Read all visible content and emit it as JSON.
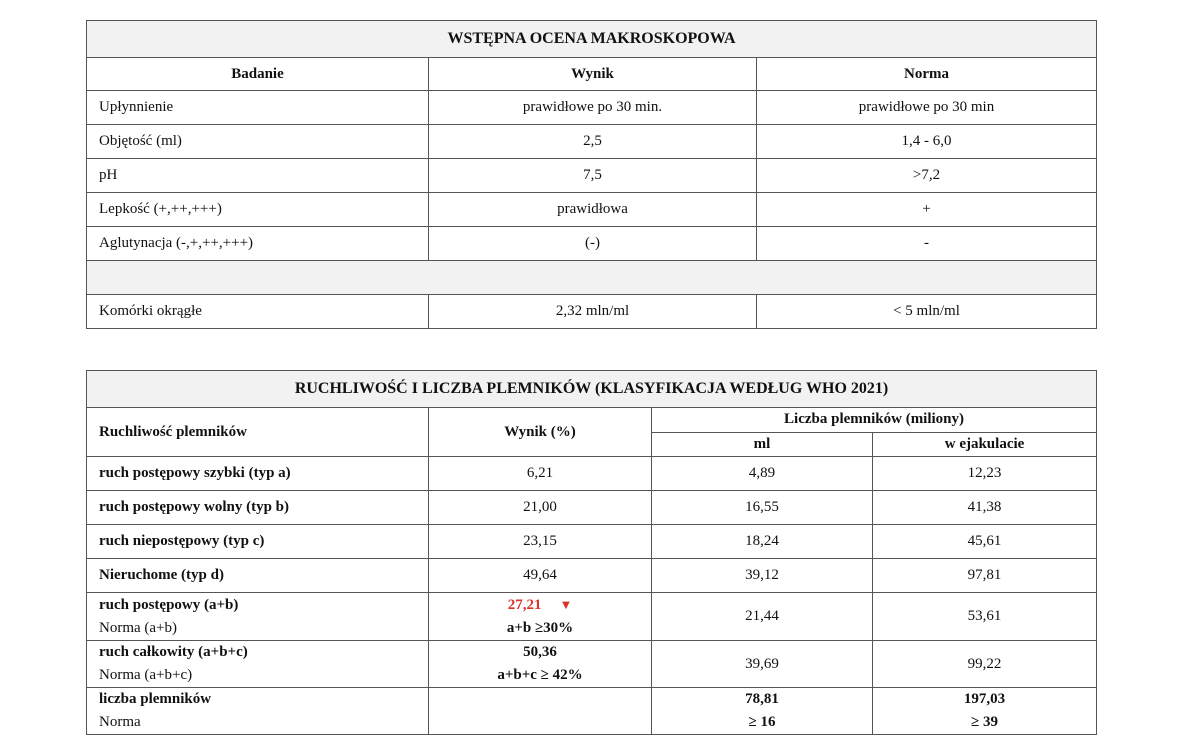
{
  "macro": {
    "title": "WSTĘPNA OCENA MAKROSKOPOWA",
    "headers": [
      "Badanie",
      "Wynik",
      "Norma"
    ],
    "rows": [
      [
        "Upłynnienie",
        "prawidłowe po 30 min.",
        "prawidłowe po 30 min"
      ],
      [
        "Objętość (ml)",
        "2,5",
        "1,4 - 6,0"
      ],
      [
        "pH",
        "7,5",
        ">7,2"
      ],
      [
        "Lepkość (+,++,+++)",
        "prawidłowa",
        "+"
      ],
      [
        "Aglutynacja (-,+,++,+++)",
        "(-)",
        "-"
      ]
    ],
    "round_cells": [
      "Komórki okrągłe",
      "2,32 mln/ml",
      "< 5 mln/ml"
    ]
  },
  "motility": {
    "title": "RUCHLIWOŚĆ I LICZBA PLEMNIKÓW (KLASYFIKACJA WEDŁUG WHO 2021)",
    "h_motility": "Ruchliwość plemników",
    "h_result": "Wynik (%)",
    "h_count": "Liczba plemników (miliony)",
    "h_ml": "ml",
    "h_ejac": "w ejakulacie",
    "rows": [
      [
        "ruch postępowy szybki (typ a)",
        "6,21",
        "4,89",
        "12,23"
      ],
      [
        "ruch postępowy wolny (typ b)",
        "21,00",
        "16,55",
        "41,38"
      ],
      [
        "ruch niepostępowy (typ c)",
        "23,15",
        "18,24",
        "45,61"
      ],
      [
        "Nieruchome (typ d)",
        "49,64",
        "39,12",
        "97,81"
      ]
    ],
    "progressive": {
      "label": "ruch postępowy (a+b)",
      "norm_label": "Norma (a+b)",
      "value": "27,21",
      "flag_icon": "down-triangle-icon",
      "norm": "a+b ≥30%",
      "ml": "21,44",
      "ejac": "53,61"
    },
    "total": {
      "label": "ruch całkowity (a+b+c)",
      "norm_label": "Norma (a+b+c)",
      "value": "50,36",
      "norm": "a+b+c ≥ 42%",
      "ml": "39,69",
      "ejac": "99,22"
    },
    "count": {
      "label": "liczba plemników",
      "norm_label": "Norma",
      "ml": "78,81",
      "ml_norm": "≥ 16",
      "ejac": "197,03",
      "ejac_norm": "≥ 39"
    }
  },
  "colors": {
    "flag": "#d9342b",
    "header_bg": "#f2f2f2"
  }
}
